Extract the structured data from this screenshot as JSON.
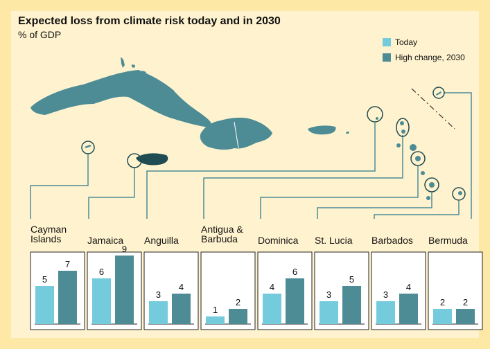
{
  "colors": {
    "background": "#fde8a6",
    "card": "#fff3cf",
    "today": "#74cbdc",
    "high": "#4d8c95",
    "map": "#4d8c95",
    "jamaica": "#1f4b52"
  },
  "chart_data": {
    "type": "bar",
    "title": "Expected loss from climate risk today and in 2030",
    "subtitle": "% of GDP",
    "ylim": [
      0,
      10
    ],
    "legend_position": "top-right",
    "categories": [
      [
        "Cayman",
        "Islands"
      ],
      [
        "Jamaica"
      ],
      [
        "Anguilla"
      ],
      [
        "Antigua &",
        "Barbuda"
      ],
      [
        "Dominica"
      ],
      [
        "St. Lucia"
      ],
      [
        "Barbados"
      ],
      [
        "Bermuda"
      ]
    ],
    "series": [
      {
        "name": "Today",
        "values": [
          5,
          6,
          3,
          1,
          4,
          3,
          3,
          2
        ]
      },
      {
        "name": "High change, 2030",
        "values": [
          7,
          9,
          4,
          2,
          6,
          5,
          4,
          2
        ]
      }
    ]
  }
}
